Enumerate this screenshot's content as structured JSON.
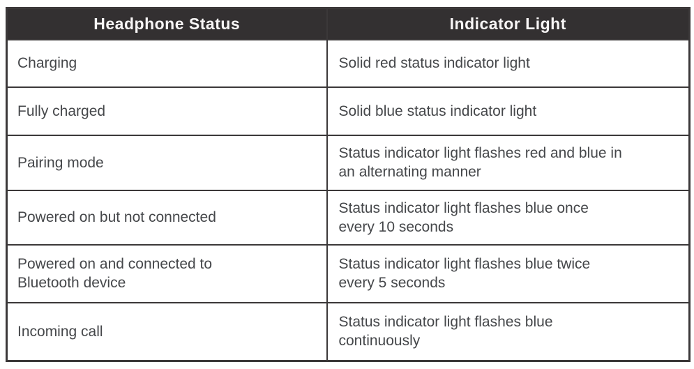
{
  "table": {
    "columns": [
      {
        "label": "Headphone Status"
      },
      {
        "label": "Indicator Light"
      }
    ],
    "rows": [
      {
        "status": "Charging",
        "indicator": "Solid red status indicator light"
      },
      {
        "status": "Fully charged",
        "indicator": "Solid blue status indicator light"
      },
      {
        "status": "Pairing mode",
        "indicator": "Status indicator light flashes red and blue in\nan alternating manner"
      },
      {
        "status": "Powered on but not connected",
        "indicator": "Status indicator light flashes blue once\nevery 10 seconds"
      },
      {
        "status": "Powered on and connected to\nBluetooth device",
        "indicator": "Status indicator light flashes blue twice\nevery 5 seconds"
      },
      {
        "status": "Incoming call",
        "indicator": "Status indicator light flashes blue\ncontinuously"
      }
    ],
    "colors": {
      "header_bg": "#333031",
      "header_text": "#f8f6f6",
      "body_text": "#45474a",
      "border": "#3b3839",
      "page_bg": "#ffffff"
    }
  }
}
